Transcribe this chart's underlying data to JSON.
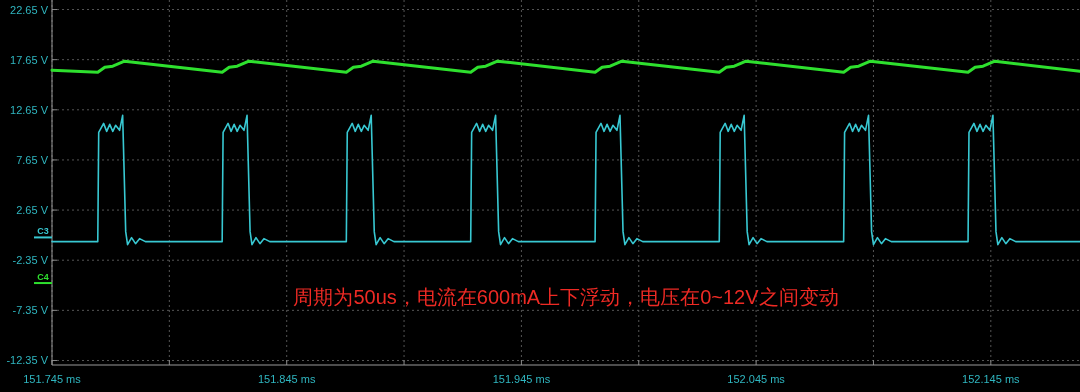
{
  "chart_data": {
    "type": "line",
    "xlim": [
      151.745,
      152.183
    ],
    "ylim": [
      -12.8,
      23.6
    ],
    "xticks": [
      {
        "value": 151.745,
        "label": "151.745 ms"
      },
      {
        "value": 151.795,
        "label": null
      },
      {
        "value": 151.845,
        "label": "151.845 ms"
      },
      {
        "value": 151.895,
        "label": null
      },
      {
        "value": 151.945,
        "label": "151.945 ms"
      },
      {
        "value": 151.995,
        "label": null
      },
      {
        "value": 152.045,
        "label": "152.045 ms"
      },
      {
        "value": 152.095,
        "label": null
      },
      {
        "value": 152.145,
        "label": "152.145 ms"
      }
    ],
    "yticks": [
      {
        "value": 22.65,
        "label": "22.65 V"
      },
      {
        "value": 17.65,
        "label": "17.65 V"
      },
      {
        "value": 12.65,
        "label": "12.65 V"
      },
      {
        "value": 7.65,
        "label": "7.65 V"
      },
      {
        "value": 2.65,
        "label": "2.65 V"
      },
      {
        "value": -2.35,
        "label": "-2.35 V"
      },
      {
        "value": -7.35,
        "label": "-7.35 V"
      },
      {
        "value": -12.35,
        "label": "-12.35 V"
      }
    ],
    "grid": true,
    "series": [
      {
        "color": "#2ee02e",
        "x": [
          151.745,
          151.7645,
          151.7675,
          151.7709,
          151.7759,
          151.8175,
          151.8205,
          151.8239,
          151.8289,
          151.8704,
          151.8734,
          151.8768,
          151.8818,
          151.9234,
          151.9264,
          151.9298,
          151.9348,
          151.9764,
          151.9794,
          151.9828,
          151.9878,
          152.0293,
          152.0323,
          152.0357,
          152.0407,
          152.0823,
          152.0853,
          152.0887,
          152.0937,
          152.1353,
          152.1383,
          152.1417,
          152.1467,
          152.183
        ],
        "values": [
          16.6,
          16.4,
          16.9,
          17.0,
          17.5,
          16.4,
          16.9,
          17.0,
          17.5,
          16.4,
          16.9,
          17.0,
          17.5,
          16.4,
          16.9,
          17.0,
          17.5,
          16.4,
          16.9,
          17.0,
          17.5,
          16.4,
          16.9,
          17.0,
          17.5,
          16.4,
          16.9,
          17.0,
          17.5,
          16.4,
          16.9,
          17.0,
          17.5,
          16.5
        ]
      },
      {
        "color": "#38c8d2",
        "x": [
          151.745,
          151.7645,
          151.7649,
          151.767,
          151.7683,
          151.7696,
          151.7709,
          151.7721,
          151.7738,
          151.7751,
          151.7764,
          151.7772,
          151.7789,
          151.7806,
          151.7823,
          151.7848,
          151.8175,
          151.8179,
          151.82,
          151.8213,
          151.8226,
          151.8239,
          151.8251,
          151.8268,
          151.8281,
          151.8294,
          151.8302,
          151.8319,
          151.8336,
          151.8353,
          151.8378,
          151.8704,
          151.8708,
          151.8729,
          151.8742,
          151.8755,
          151.8768,
          151.878,
          151.8797,
          151.881,
          151.8823,
          151.8831,
          151.8848,
          151.8865,
          151.8882,
          151.8907,
          151.9234,
          151.9238,
          151.9259,
          151.9272,
          151.9285,
          151.9298,
          151.931,
          151.9327,
          151.934,
          151.9353,
          151.9361,
          151.9378,
          151.9395,
          151.9412,
          151.9437,
          151.9764,
          151.9768,
          151.9789,
          151.9802,
          151.9815,
          151.9828,
          151.984,
          151.9857,
          151.987,
          151.9883,
          151.9891,
          151.9908,
          151.9925,
          151.9942,
          151.9967,
          152.0293,
          152.0297,
          152.0318,
          152.0331,
          152.0344,
          152.0357,
          152.0369,
          152.0386,
          152.0399,
          152.0412,
          152.042,
          152.0437,
          152.0454,
          152.0471,
          152.0496,
          152.0823,
          152.0827,
          152.0848,
          152.0861,
          152.0874,
          152.0887,
          152.0899,
          152.0916,
          152.0929,
          152.0942,
          152.095,
          152.0967,
          152.0984,
          152.1001,
          152.1026,
          152.1353,
          152.1357,
          152.1378,
          152.1391,
          152.1404,
          152.1417,
          152.1429,
          152.1446,
          152.1459,
          152.1472,
          152.148,
          152.1497,
          152.1514,
          152.1531,
          152.1556,
          152.183
        ],
        "values": [
          -0.5,
          -0.5,
          10.4,
          11.3,
          10.5,
          11.2,
          10.5,
          11.1,
          10.6,
          12.1,
          0.5,
          -0.8,
          -0.1,
          -0.7,
          -0.2,
          -0.5,
          -0.5,
          10.4,
          11.3,
          10.5,
          11.2,
          10.5,
          11.1,
          10.6,
          12.1,
          0.5,
          -0.8,
          -0.1,
          -0.7,
          -0.2,
          -0.5,
          -0.5,
          10.4,
          11.3,
          10.5,
          11.2,
          10.5,
          11.1,
          10.6,
          12.1,
          0.5,
          -0.8,
          -0.1,
          -0.7,
          -0.2,
          -0.5,
          -0.5,
          10.4,
          11.3,
          10.5,
          11.2,
          10.5,
          11.1,
          10.6,
          12.1,
          0.5,
          -0.8,
          -0.1,
          -0.7,
          -0.2,
          -0.5,
          -0.5,
          10.4,
          11.3,
          10.5,
          11.2,
          10.5,
          11.1,
          10.6,
          12.1,
          0.5,
          -0.8,
          -0.1,
          -0.7,
          -0.2,
          -0.5,
          -0.5,
          10.4,
          11.3,
          10.5,
          11.2,
          10.5,
          11.1,
          10.6,
          12.1,
          0.5,
          -0.8,
          -0.1,
          -0.7,
          -0.2,
          -0.5,
          -0.5,
          10.4,
          11.3,
          10.5,
          11.2,
          10.5,
          11.1,
          10.6,
          12.1,
          0.5,
          -0.8,
          -0.1,
          -0.7,
          -0.2,
          -0.5,
          -0.5,
          10.4,
          11.3,
          10.5,
          11.2,
          10.5,
          11.1,
          10.6,
          12.1,
          0.5,
          -0.8,
          -0.1,
          -0.7,
          -0.2,
          -0.5,
          -0.5
        ]
      }
    ],
    "annotations": [
      "周期为50us，电流在600mA上下浮动，电压在0~12V之间变动",
      "C3",
      "C4"
    ]
  }
}
